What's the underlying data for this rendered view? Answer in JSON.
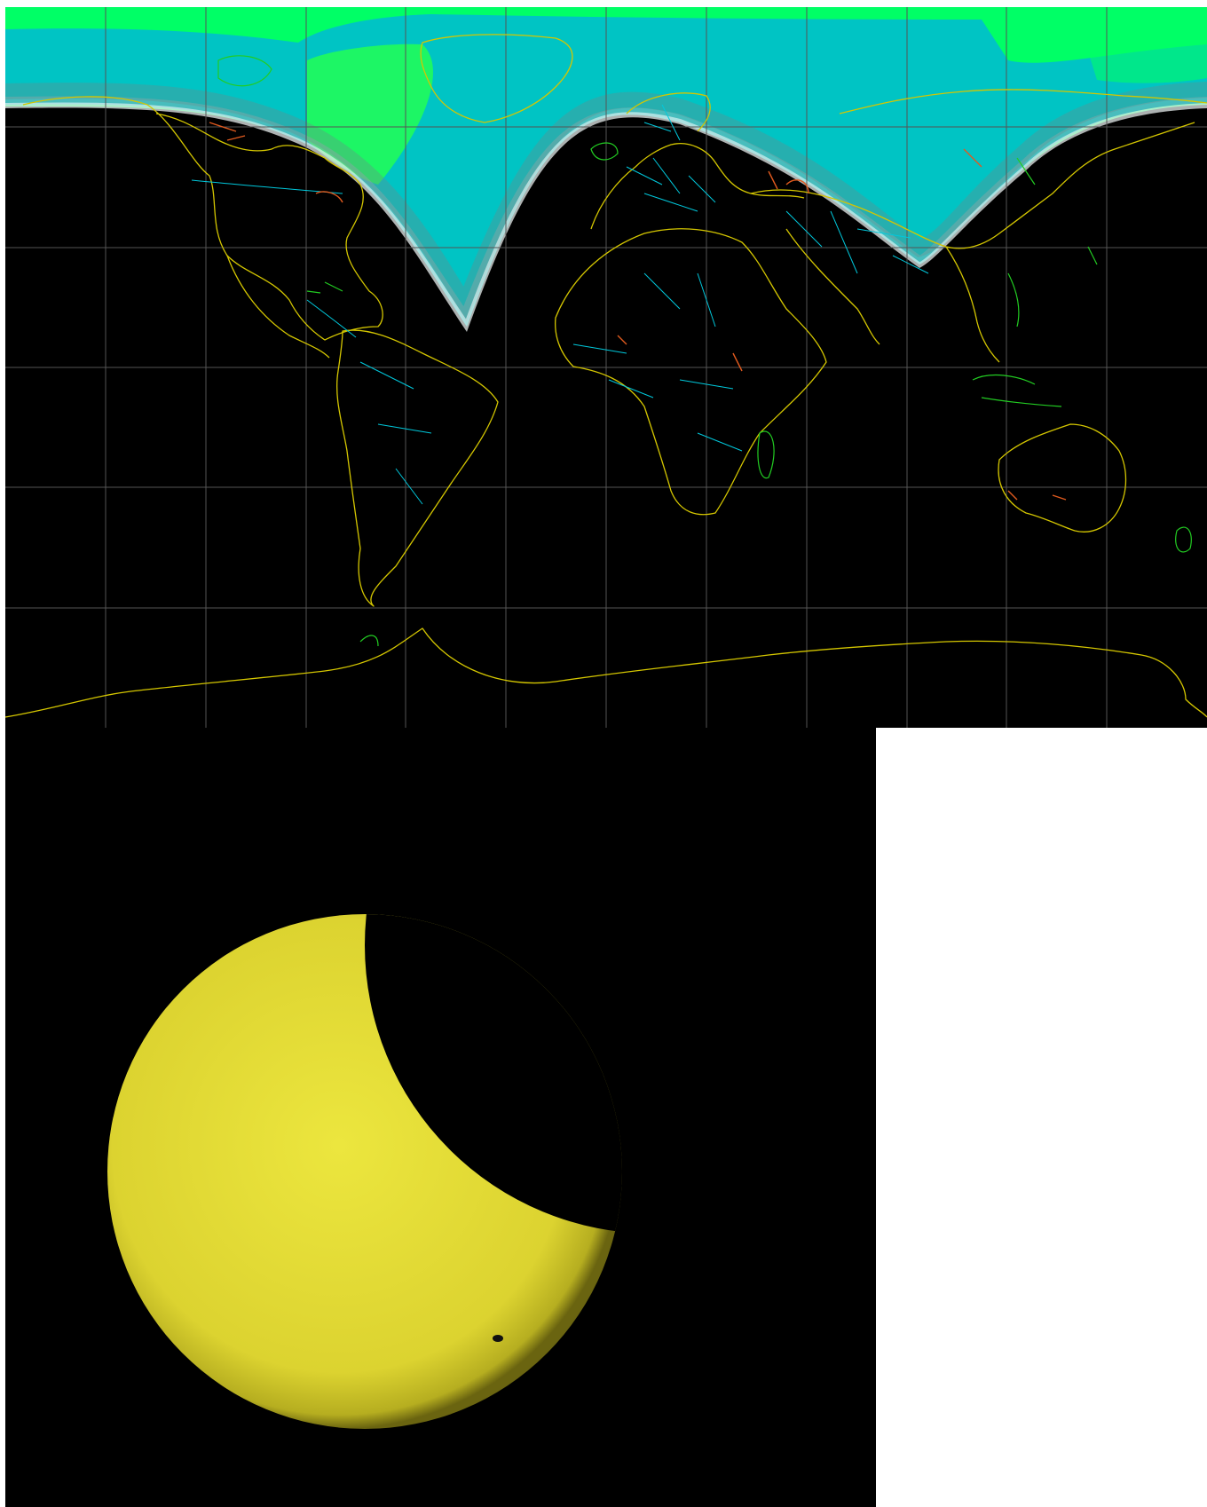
{
  "map": {
    "projection": "equirectangular",
    "grid": true,
    "grid_columns": 12,
    "grid_rows": 6,
    "colors": {
      "night": "#000000",
      "day_far": "#00ff66",
      "day_near": "#00c8c8",
      "twilight": "#ffffff",
      "grid": "#555555",
      "coastline": "#d4c600",
      "borders": "#00c8dc",
      "islands": "#22cc22",
      "lakes": "#e05a1e"
    }
  },
  "eclipse_view": {
    "sun_color": "#e8e23a",
    "sun_edge_color": "#8a8410",
    "moon_color": "#000000",
    "sunspot_color": "#101010",
    "eclipse_phase": "partial"
  }
}
